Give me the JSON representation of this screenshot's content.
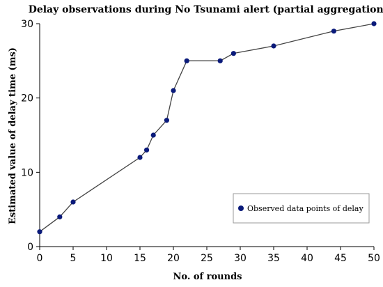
{
  "chart_data": {
    "type": "line",
    "title": "Delay observations during No Tsunami alert (partial aggregation)",
    "xlabel": "No. of rounds",
    "ylabel": "Estimated value of delay time (ms)",
    "xlim": [
      0,
      50
    ],
    "ylim": [
      0,
      30
    ],
    "xticks": [
      0,
      5,
      10,
      15,
      20,
      25,
      30,
      35,
      40,
      45,
      50
    ],
    "yticks": [
      0,
      10,
      20,
      30
    ],
    "grid": false,
    "legend_position": "bottom-right",
    "series": [
      {
        "name": "Observed data points of delay",
        "color": "#0a1a7a",
        "line_color": "#444444",
        "x": [
          0,
          3,
          5,
          15,
          16,
          17,
          19,
          20,
          22,
          27,
          29,
          35,
          44,
          50
        ],
        "y": [
          2,
          4,
          6,
          12,
          13,
          15,
          17,
          21,
          25,
          25,
          26,
          27,
          29,
          30
        ]
      }
    ]
  }
}
